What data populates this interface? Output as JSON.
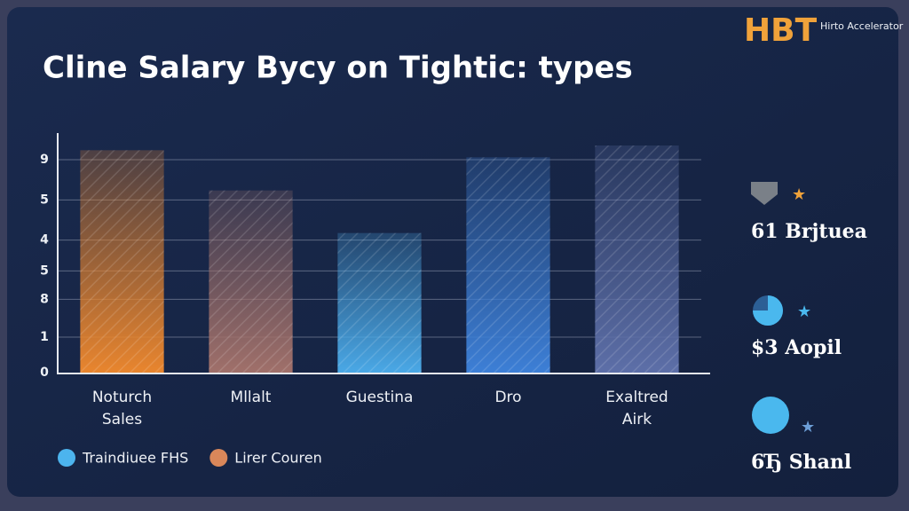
{
  "header": {
    "logo": "HBT",
    "logo_caption": "Hirto Accelerator"
  },
  "chart_data": {
    "type": "bar",
    "title": "Cline Salary Bycy on Tightic: types",
    "categories": [
      "Noturch\nSales",
      "Mllalt",
      "Guestina",
      "Dro",
      "Exaltred\nAirk"
    ],
    "values": [
      9.4,
      7.7,
      5.9,
      9.1,
      9.6
    ],
    "colors": [
      "#e8852e",
      "#a0706a",
      "#4aa8e6",
      "#3d7fd6",
      "#5d6fa8"
    ],
    "ylim": [
      0,
      9.9
    ],
    "yticks": [
      0,
      {
        "value": 1.5,
        "label": "1"
      },
      {
        "value": 3.1,
        "label": "8"
      },
      {
        "value": 4.3,
        "label": "5"
      },
      {
        "value": 5.6,
        "label": "4"
      },
      {
        "value": 7.3,
        "label": "5"
      },
      9
    ],
    "grid": true,
    "legend": [
      {
        "name": "Traindiuee FHS",
        "color": "#4cb4ee"
      },
      {
        "name": "Lirer Couren",
        "color": "#d9875a"
      }
    ]
  },
  "side_stats": [
    "61 Brjtuea",
    "$3 Aopil",
    "6Ђ Shanl"
  ]
}
